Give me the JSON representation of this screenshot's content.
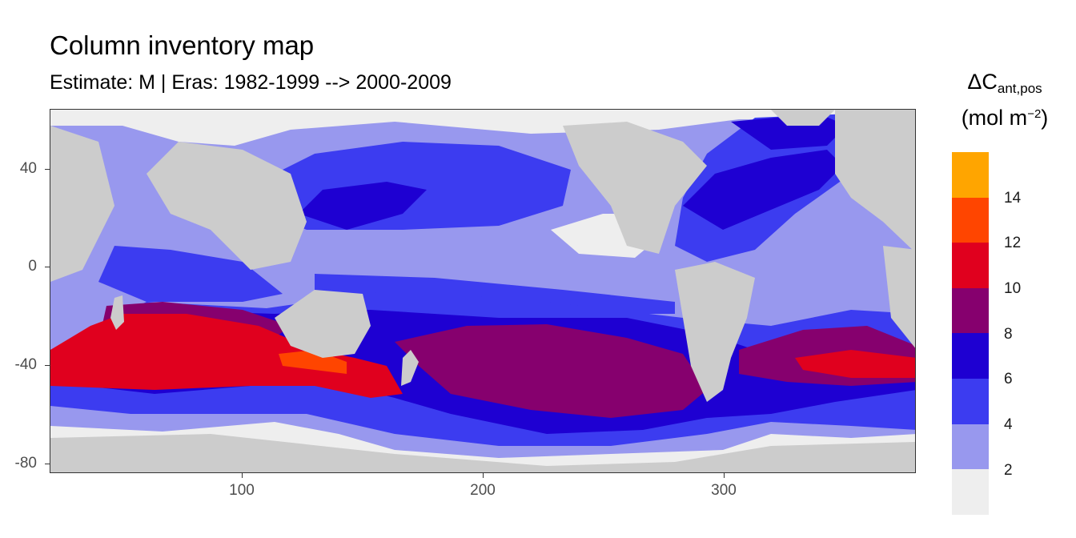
{
  "title": "Column inventory map",
  "subtitle": "Estimate: M  | Eras: 1982-1999 --> 2000-2009",
  "legend": {
    "title_main": "ΔC",
    "title_sub": "ant,pos",
    "unit_pre": "(mol m",
    "unit_sup": "−2",
    "unit_post": ")",
    "labels": [
      "14",
      "12",
      "10",
      "8",
      "6",
      "4",
      "2"
    ],
    "bins": [
      {
        "range": "14-16",
        "color": "#FFA500"
      },
      {
        "range": "12-14",
        "color": "#FF4500"
      },
      {
        "range": "10-12",
        "color": "#E0001E"
      },
      {
        "range": "8-10",
        "color": "#86006E"
      },
      {
        "range": "6-8",
        "color": "#1E00D2"
      },
      {
        "range": "4-6",
        "color": "#3C3CF0"
      },
      {
        "range": "2-4",
        "color": "#9898EE"
      },
      {
        "range": "0-2",
        "color": "#EEEEEE"
      }
    ]
  },
  "axes": {
    "x_ticks": [
      "100",
      "200",
      "300"
    ],
    "y_ticks": [
      "40",
      "0",
      "-40",
      "-80"
    ],
    "xlim": [
      20,
      380
    ],
    "ylim": [
      -85,
      64
    ]
  },
  "colors": {
    "land": "#cccccc",
    "background": "#ffffff"
  }
}
